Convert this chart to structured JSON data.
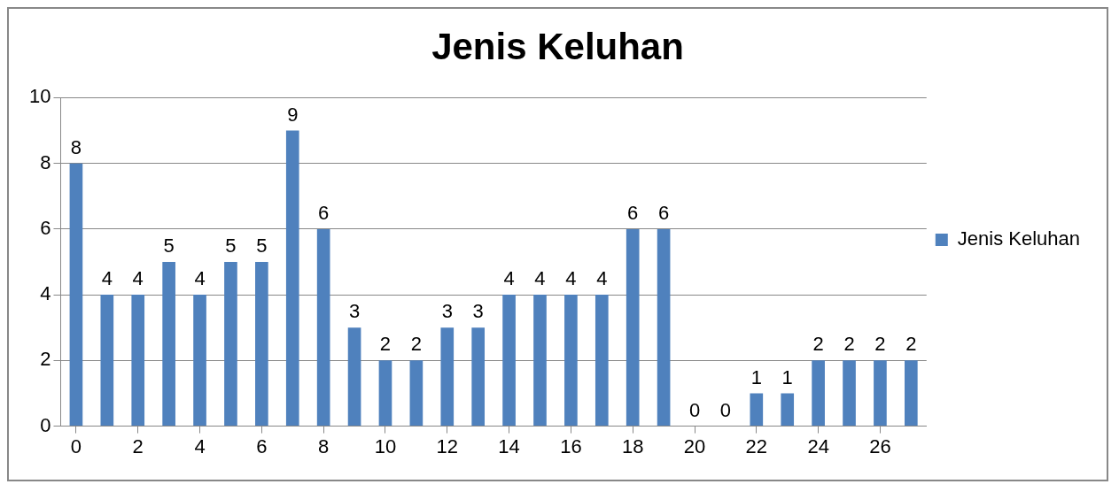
{
  "chart_data": {
    "type": "bar",
    "title": "Jenis Keluhan",
    "x": [
      0,
      1,
      2,
      3,
      4,
      5,
      6,
      7,
      8,
      9,
      10,
      11,
      12,
      13,
      14,
      15,
      16,
      17,
      18,
      19,
      20,
      21,
      22,
      23,
      24,
      25,
      26,
      27
    ],
    "xlim": [
      -0.5,
      27.5
    ],
    "xticks": [
      0,
      2,
      4,
      6,
      8,
      10,
      12,
      14,
      16,
      18,
      20,
      22,
      24,
      26
    ],
    "series": [
      {
        "name": "Jenis Keluhan",
        "color": "#4f81bd",
        "values": [
          8,
          4,
          4,
          5,
          4,
          5,
          5,
          9,
          6,
          3,
          2,
          2,
          3,
          3,
          4,
          4,
          4,
          4,
          6,
          6,
          0,
          0,
          1,
          1,
          2,
          2,
          2,
          2
        ]
      }
    ],
    "ylim": [
      0,
      10
    ],
    "yticks": [
      0,
      2,
      4,
      6,
      8,
      10
    ],
    "grid": "y",
    "legend": "right",
    "data_labels": true
  }
}
